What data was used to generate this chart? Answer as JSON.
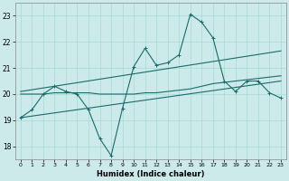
{
  "xlabel": "Humidex (Indice chaleur)",
  "xlim": [
    -0.5,
    23.5
  ],
  "ylim": [
    17.5,
    23.5
  ],
  "yticks": [
    18,
    19,
    20,
    21,
    22,
    23
  ],
  "xticks": [
    0,
    1,
    2,
    3,
    4,
    5,
    6,
    7,
    8,
    9,
    10,
    11,
    12,
    13,
    14,
    15,
    16,
    17,
    18,
    19,
    20,
    21,
    22,
    23
  ],
  "bg_color": "#cceaea",
  "grid_color": "#a8d8d8",
  "line_color": "#1a6b6b",
  "jagged_x": [
    0,
    1,
    2,
    3,
    4,
    5,
    6,
    7,
    8,
    9,
    10,
    11,
    12,
    13,
    14,
    15,
    16,
    17,
    18,
    19,
    20,
    21,
    22,
    23
  ],
  "jagged_y": [
    19.1,
    19.4,
    20.0,
    20.3,
    20.1,
    20.0,
    19.4,
    18.3,
    17.65,
    19.45,
    21.05,
    21.75,
    21.1,
    21.2,
    21.5,
    23.05,
    22.75,
    22.15,
    20.5,
    20.1,
    20.5,
    20.5,
    20.05,
    19.85
  ],
  "smooth_x": [
    0,
    1,
    2,
    3,
    4,
    5,
    6,
    7,
    8,
    9,
    10,
    11,
    12,
    13,
    14,
    15,
    16,
    17,
    18,
    19,
    20,
    21,
    22,
    23
  ],
  "smooth_y": [
    20.0,
    20.0,
    20.0,
    20.05,
    20.05,
    20.05,
    20.05,
    20.0,
    20.0,
    20.0,
    20.0,
    20.05,
    20.05,
    20.1,
    20.15,
    20.2,
    20.3,
    20.4,
    20.45,
    20.5,
    20.55,
    20.6,
    20.65,
    20.7
  ],
  "trend1_x": [
    0,
    23
  ],
  "trend1_y": [
    19.1,
    20.5
  ],
  "trend2_x": [
    0,
    23
  ],
  "trend2_y": [
    20.1,
    21.65
  ]
}
